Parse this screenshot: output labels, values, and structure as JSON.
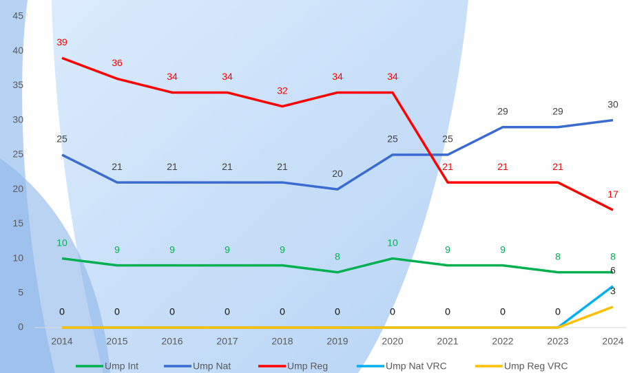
{
  "chart_data": {
    "type": "line",
    "categories": [
      "2014",
      "2015",
      "2016",
      "2017",
      "2018",
      "2019",
      "2020",
      "2021",
      "2022",
      "2023",
      "2024"
    ],
    "series": [
      {
        "name": "Ump Int",
        "color": "#00b050",
        "label_color": "#00b050",
        "values": [
          10,
          9,
          9,
          9,
          9,
          8,
          10,
          9,
          9,
          8,
          8
        ]
      },
      {
        "name": "Ump Nat",
        "color": "#3a6bd0",
        "label_color": "#404040",
        "values": [
          25,
          21,
          21,
          21,
          21,
          20,
          25,
          25,
          29,
          29,
          30
        ]
      },
      {
        "name": "Ump Reg",
        "color": "#ff0000",
        "label_color": "#ff0000",
        "values": [
          39,
          36,
          34,
          34,
          32,
          34,
          34,
          21,
          21,
          21,
          17
        ]
      },
      {
        "name": "Ump Nat VRC",
        "color": "#00b0f0",
        "label_color": "#262626",
        "values": [
          0,
          0,
          0,
          0,
          0,
          0,
          0,
          0,
          0,
          0,
          6
        ]
      },
      {
        "name": "Ump Reg VRC",
        "color": "#ffc000",
        "label_color": "#262626",
        "values": [
          0,
          0,
          0,
          0,
          0,
          0,
          0,
          0,
          0,
          0,
          3
        ]
      }
    ],
    "ylim": [
      0,
      45
    ],
    "yticks": [
      0,
      5,
      10,
      15,
      20,
      25,
      30,
      35,
      40,
      45
    ],
    "grid": false,
    "legend": "bottom"
  }
}
